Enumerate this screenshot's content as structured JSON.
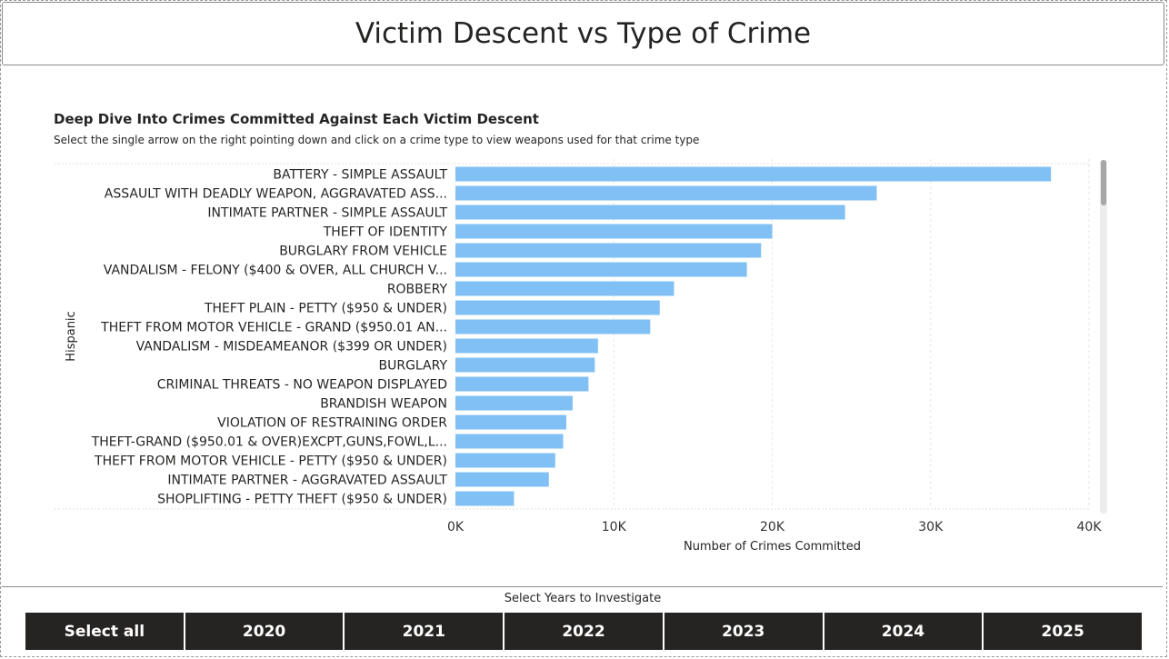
{
  "page": {
    "title": "Victim Descent vs Type of Crime"
  },
  "chart_data": {
    "type": "bar",
    "orientation": "horizontal",
    "title": "Deep Dive Into Crimes Committed Against Each Victim Descent",
    "subtitle": "Select the single arrow on the right pointing down and click on a crime type to view weapons used for that crime type",
    "ylabel": "Hispanic",
    "xlabel": "Number of Crimes Committed",
    "xlim": [
      0,
      40000
    ],
    "xticks": [
      {
        "value": 0,
        "label": "0K"
      },
      {
        "value": 10000,
        "label": "10K"
      },
      {
        "value": 20000,
        "label": "20K"
      },
      {
        "value": 30000,
        "label": "30K"
      },
      {
        "value": 40000,
        "label": "40K"
      }
    ],
    "grid": true,
    "bar_color": "#80C0F5",
    "categories": [
      "BATTERY - SIMPLE ASSAULT",
      "ASSAULT WITH DEADLY WEAPON, AGGRAVATED ASS...",
      "INTIMATE PARTNER - SIMPLE ASSAULT",
      "THEFT OF IDENTITY",
      "BURGLARY FROM VEHICLE",
      "VANDALISM - FELONY ($400 & OVER, ALL CHURCH V...",
      "ROBBERY",
      "THEFT PLAIN - PETTY ($950 & UNDER)",
      "THEFT FROM MOTOR VEHICLE - GRAND ($950.01 AN...",
      "VANDALISM - MISDEAMEANOR ($399 OR UNDER)",
      "BURGLARY",
      "CRIMINAL THREATS - NO WEAPON DISPLAYED",
      "BRANDISH WEAPON",
      "VIOLATION OF RESTRAINING ORDER",
      "THEFT-GRAND ($950.01 & OVER)EXCPT,GUNS,FOWL,L...",
      "THEFT FROM MOTOR VEHICLE - PETTY ($950 & UNDER)",
      "INTIMATE PARTNER - AGGRAVATED ASSAULT",
      "SHOPLIFTING - PETTY THEFT ($950 & UNDER)"
    ],
    "values": [
      37600,
      26600,
      24600,
      20000,
      19300,
      18400,
      13800,
      12900,
      12300,
      9000,
      8800,
      8400,
      7400,
      7000,
      6800,
      6300,
      5900,
      3700
    ]
  },
  "slicer": {
    "title": "Select Years to Investigate",
    "options": [
      "Select all",
      "2020",
      "2021",
      "2022",
      "2023",
      "2024",
      "2025"
    ]
  }
}
